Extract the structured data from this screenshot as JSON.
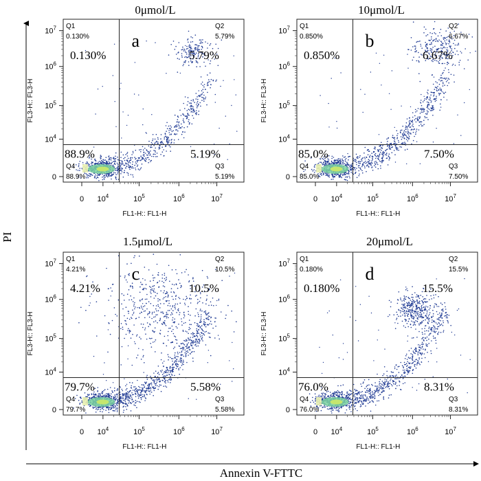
{
  "figure": {
    "y_axis_label": "PI",
    "x_axis_label": "Annexin V-FTTC"
  },
  "chart_data": [
    {
      "type": "scatter",
      "title": "0μmol/L",
      "panel_letter": "a",
      "xlabel": "FL1-H:: FL1-H",
      "ylabel": "FL3-H:: FL3-H",
      "x_ticks": [
        "0",
        "10^4",
        "10^5",
        "10^6",
        "10^7"
      ],
      "y_ticks": [
        "0",
        "10^4",
        "10^5",
        "10^6",
        "10^7"
      ],
      "quadrants": {
        "Q1": {
          "label": "Q1",
          "value": "0.130%"
        },
        "Q2": {
          "label": "Q2",
          "value": "5.79%"
        },
        "Q3": {
          "label": "Q3",
          "value": "5.19%"
        },
        "Q4": {
          "label": "Q4",
          "value": "88.9%"
        }
      },
      "large_labels": {
        "Q1": "0.130%",
        "Q2": "5.79%",
        "Q3": "5.19%",
        "Q4": "88.9%"
      },
      "point_color": "#1f3a93",
      "density_color": "#7dd3a0"
    },
    {
      "type": "scatter",
      "title": "10μmol/L",
      "panel_letter": "b",
      "xlabel": "FL1-H:: FL1-H",
      "ylabel": "FL3-H:: FL3-H",
      "x_ticks": [
        "0",
        "10^4",
        "10^5",
        "10^6",
        "10^7"
      ],
      "y_ticks": [
        "0",
        "10^4",
        "10^5",
        "10^6",
        "10^7"
      ],
      "quadrants": {
        "Q1": {
          "label": "Q1",
          "value": "0.850%"
        },
        "Q2": {
          "label": "Q2",
          "value": "6.67%"
        },
        "Q3": {
          "label": "Q3",
          "value": "7.50%"
        },
        "Q4": {
          "label": "Q4",
          "value": "85.0%"
        }
      },
      "large_labels": {
        "Q1": "0.850%",
        "Q2": "6.67%",
        "Q3": "7.50%",
        "Q4": "85.0%"
      },
      "point_color": "#1f3a93",
      "density_color": "#7dd3a0"
    },
    {
      "type": "scatter",
      "title": "1.5μmol/L",
      "panel_letter": "c",
      "xlabel": "FL1-H:: FL1-H",
      "ylabel": "FL3-H:: FL3-H",
      "x_ticks": [
        "0",
        "10^4",
        "10^5",
        "10^6",
        "10^7"
      ],
      "y_ticks": [
        "0",
        "10^4",
        "10^5",
        "10^6",
        "10^7"
      ],
      "quadrants": {
        "Q1": {
          "label": "Q1",
          "value": "4.21%"
        },
        "Q2": {
          "label": "Q2",
          "value": "10.5%"
        },
        "Q3": {
          "label": "Q3",
          "value": "5.58%"
        },
        "Q4": {
          "label": "Q4",
          "value": "79.7%"
        }
      },
      "large_labels": {
        "Q1": "4.21%",
        "Q2": "10.5%",
        "Q3": "5.58%",
        "Q4": "79.7%"
      },
      "point_color": "#1f3a93",
      "density_color": "#7dd3a0"
    },
    {
      "type": "scatter",
      "title": "20μmol/L",
      "panel_letter": "d",
      "xlabel": "FL1-H:: FL1-H",
      "ylabel": "FL3-H:: FL3-H",
      "x_ticks": [
        "0",
        "10^4",
        "10^5",
        "10^6",
        "10^7"
      ],
      "y_ticks": [
        "0",
        "10^4",
        "10^5",
        "10^6",
        "10^7"
      ],
      "quadrants": {
        "Q1": {
          "label": "Q1",
          "value": "0.180%"
        },
        "Q2": {
          "label": "Q2",
          "value": "15.5%"
        },
        "Q3": {
          "label": "Q3",
          "value": "8.31%"
        },
        "Q4": {
          "label": "Q4",
          "value": "76.0%"
        }
      },
      "large_labels": {
        "Q1": "0.180%",
        "Q2": "15.5%",
        "Q3": "8.31%",
        "Q4": "76.0%"
      },
      "point_color": "#1f3a93",
      "density_color": "#7dd3a0"
    }
  ]
}
